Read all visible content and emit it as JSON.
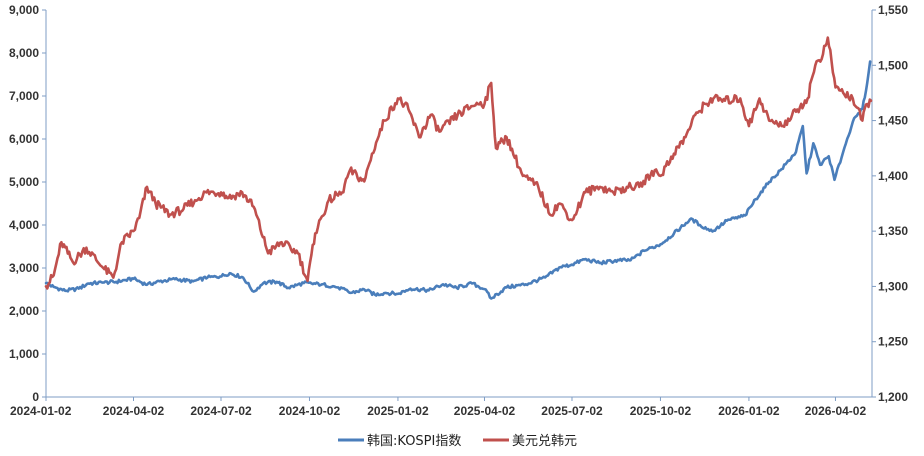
{
  "chart_data": {
    "type": "line",
    "title": "",
    "xlabel": "",
    "ylabel": "",
    "y2label": "",
    "legend_position": "bottom-center",
    "grid": false,
    "xlim": [
      "2024-01-02",
      "2026-05-10"
    ],
    "ylim_left": [
      0,
      9000
    ],
    "ylim_right": [
      1200,
      1550
    ],
    "x_ticks": [
      "2024-01-02",
      "2024-04-02",
      "2024-07-02",
      "2024-10-02",
      "2025-01-02",
      "2025-04-02",
      "2025-07-02",
      "2025-10-02",
      "2026-01-02",
      "2026-04-02"
    ],
    "y_left_ticks": [
      0,
      1000,
      2000,
      3000,
      4000,
      5000,
      6000,
      7000,
      8000,
      9000
    ],
    "y_right_ticks": [
      1200,
      1250,
      1300,
      1350,
      1400,
      1450,
      1500,
      1550
    ],
    "y_left_tick_labels": [
      "0",
      "1,000",
      "2,000",
      "3,000",
      "4,000",
      "5,000",
      "6,000",
      "7,000",
      "8,000",
      "9,000"
    ],
    "y_right_tick_labels": [
      "1,200",
      "1,250",
      "1,300",
      "1,350",
      "1,400",
      "1,450",
      "1,500",
      "1,550"
    ],
    "series": [
      {
        "name": "韩国:KOSPI指数",
        "axis": "left",
        "color": "#4a7ebb",
        "points": [
          [
            "2024-01-02",
            2650
          ],
          [
            "2024-01-10",
            2560
          ],
          [
            "2024-01-22",
            2470
          ],
          [
            "2024-02-05",
            2520
          ],
          [
            "2024-02-15",
            2640
          ],
          [
            "2024-03-01",
            2660
          ],
          [
            "2024-03-15",
            2680
          ],
          [
            "2024-04-02",
            2750
          ],
          [
            "2024-04-16",
            2610
          ],
          [
            "2024-04-29",
            2690
          ],
          [
            "2024-05-15",
            2740
          ],
          [
            "2024-06-03",
            2690
          ],
          [
            "2024-06-18",
            2780
          ],
          [
            "2024-07-01",
            2800
          ],
          [
            "2024-07-11",
            2880
          ],
          [
            "2024-07-25",
            2780
          ],
          [
            "2024-08-05",
            2450
          ],
          [
            "2024-08-15",
            2650
          ],
          [
            "2024-08-29",
            2680
          ],
          [
            "2024-09-10",
            2540
          ],
          [
            "2024-09-26",
            2650
          ],
          [
            "2024-10-15",
            2620
          ],
          [
            "2024-11-01",
            2550
          ],
          [
            "2024-11-14",
            2420
          ],
          [
            "2024-11-28",
            2500
          ],
          [
            "2024-12-09",
            2380
          ],
          [
            "2024-12-20",
            2420
          ],
          [
            "2025-01-02",
            2400
          ],
          [
            "2025-01-15",
            2520
          ],
          [
            "2025-02-03",
            2480
          ],
          [
            "2025-02-18",
            2620
          ],
          [
            "2025-03-04",
            2540
          ],
          [
            "2025-03-20",
            2640
          ],
          [
            "2025-04-02",
            2510
          ],
          [
            "2025-04-09",
            2290
          ],
          [
            "2025-04-25",
            2550
          ],
          [
            "2025-05-15",
            2620
          ],
          [
            "2025-06-04",
            2780
          ],
          [
            "2025-06-20",
            3020
          ],
          [
            "2025-07-02",
            3080
          ],
          [
            "2025-07-15",
            3200
          ],
          [
            "2025-08-01",
            3120
          ],
          [
            "2025-08-20",
            3180
          ],
          [
            "2025-09-01",
            3180
          ],
          [
            "2025-09-15",
            3400
          ],
          [
            "2025-10-02",
            3550
          ],
          [
            "2025-10-16",
            3800
          ],
          [
            "2025-11-03",
            4150
          ],
          [
            "2025-11-12",
            4000
          ],
          [
            "2025-11-25",
            3850
          ],
          [
            "2025-12-10",
            4100
          ],
          [
            "2025-12-29",
            4220
          ],
          [
            "2026-01-09",
            4600
          ],
          [
            "2026-01-23",
            5000
          ],
          [
            "2026-02-05",
            5300
          ],
          [
            "2026-02-20",
            5700
          ],
          [
            "2026-02-27",
            6300
          ],
          [
            "2026-03-03",
            5200
          ],
          [
            "2026-03-10",
            5900
          ],
          [
            "2026-03-17",
            5400
          ],
          [
            "2026-03-26",
            5600
          ],
          [
            "2026-04-01",
            5050
          ],
          [
            "2026-04-10",
            5700
          ],
          [
            "2026-04-20",
            6400
          ],
          [
            "2026-04-30",
            6700
          ],
          [
            "2026-05-05",
            7300
          ],
          [
            "2026-05-08",
            7800
          ]
        ]
      },
      {
        "name": "美元兑韩元",
        "axis": "right",
        "color": "#c0504d",
        "points": [
          [
            "2024-01-02",
            1300
          ],
          [
            "2024-01-10",
            1310
          ],
          [
            "2024-01-18",
            1340
          ],
          [
            "2024-01-30",
            1322
          ],
          [
            "2024-02-13",
            1335
          ],
          [
            "2024-02-29",
            1318
          ],
          [
            "2024-03-12",
            1308
          ],
          [
            "2024-03-21",
            1340
          ],
          [
            "2024-04-02",
            1350
          ],
          [
            "2024-04-08",
            1362
          ],
          [
            "2024-04-16",
            1390
          ],
          [
            "2024-04-25",
            1375
          ],
          [
            "2024-05-10",
            1365
          ],
          [
            "2024-05-24",
            1370
          ],
          [
            "2024-06-05",
            1378
          ],
          [
            "2024-06-17",
            1385
          ],
          [
            "2024-07-02",
            1385
          ],
          [
            "2024-07-10",
            1380
          ],
          [
            "2024-07-24",
            1385
          ],
          [
            "2024-08-05",
            1372
          ],
          [
            "2024-08-20",
            1330
          ],
          [
            "2024-09-03",
            1340
          ],
          [
            "2024-09-20",
            1330
          ],
          [
            "2024-09-30",
            1305
          ],
          [
            "2024-10-08",
            1348
          ],
          [
            "2024-10-22",
            1378
          ],
          [
            "2024-11-05",
            1385
          ],
          [
            "2024-11-13",
            1405
          ],
          [
            "2024-11-28",
            1395
          ],
          [
            "2024-12-06",
            1420
          ],
          [
            "2024-12-19",
            1450
          ],
          [
            "2025-01-02",
            1470
          ],
          [
            "2025-01-13",
            1460
          ],
          [
            "2025-01-24",
            1435
          ],
          [
            "2025-02-05",
            1455
          ],
          [
            "2025-02-14",
            1440
          ],
          [
            "2025-03-05",
            1455
          ],
          [
            "2025-03-25",
            1466
          ],
          [
            "2025-04-02",
            1465
          ],
          [
            "2025-04-09",
            1484
          ],
          [
            "2025-04-14",
            1425
          ],
          [
            "2025-04-25",
            1435
          ],
          [
            "2025-05-12",
            1400
          ],
          [
            "2025-05-28",
            1390
          ],
          [
            "2025-06-09",
            1365
          ],
          [
            "2025-06-19",
            1375
          ],
          [
            "2025-07-02",
            1360
          ],
          [
            "2025-07-16",
            1385
          ],
          [
            "2025-07-31",
            1390
          ],
          [
            "2025-08-14",
            1385
          ],
          [
            "2025-08-28",
            1390
          ],
          [
            "2025-09-10",
            1390
          ],
          [
            "2025-09-26",
            1405
          ],
          [
            "2025-10-02",
            1400
          ],
          [
            "2025-10-16",
            1420
          ],
          [
            "2025-10-28",
            1435
          ],
          [
            "2025-11-07",
            1455
          ],
          [
            "2025-11-18",
            1465
          ],
          [
            "2025-11-26",
            1470
          ],
          [
            "2025-12-08",
            1468
          ],
          [
            "2025-12-24",
            1470
          ],
          [
            "2026-01-02",
            1445
          ],
          [
            "2026-01-13",
            1470
          ],
          [
            "2026-01-23",
            1450
          ],
          [
            "2026-02-05",
            1445
          ],
          [
            "2026-02-20",
            1458
          ],
          [
            "2026-03-04",
            1470
          ],
          [
            "2026-03-12",
            1500
          ],
          [
            "2026-03-20",
            1510
          ],
          [
            "2026-03-25",
            1525
          ],
          [
            "2026-04-02",
            1480
          ],
          [
            "2026-04-10",
            1475
          ],
          [
            "2026-04-20",
            1470
          ],
          [
            "2026-04-30",
            1450
          ],
          [
            "2026-05-05",
            1465
          ],
          [
            "2026-05-09",
            1468
          ]
        ]
      }
    ]
  }
}
